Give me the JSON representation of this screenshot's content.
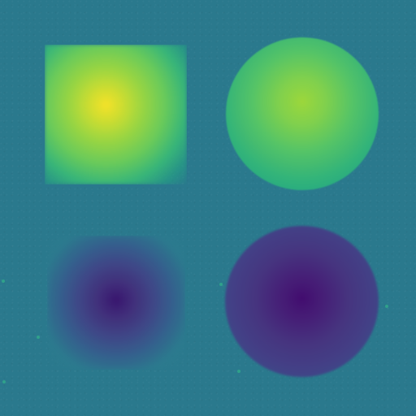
{
  "image": {
    "title": "",
    "colors": {
      "background": "#2a788e",
      "bright_center": "#fde725",
      "green": "#6cce59",
      "teal": "#21918c",
      "purple": "#440154",
      "indigo": "#3b4c89"
    },
    "objects": [
      "square-top-left",
      "circle-top-right",
      "square-bottom-left",
      "circle-bottom-right"
    ]
  }
}
